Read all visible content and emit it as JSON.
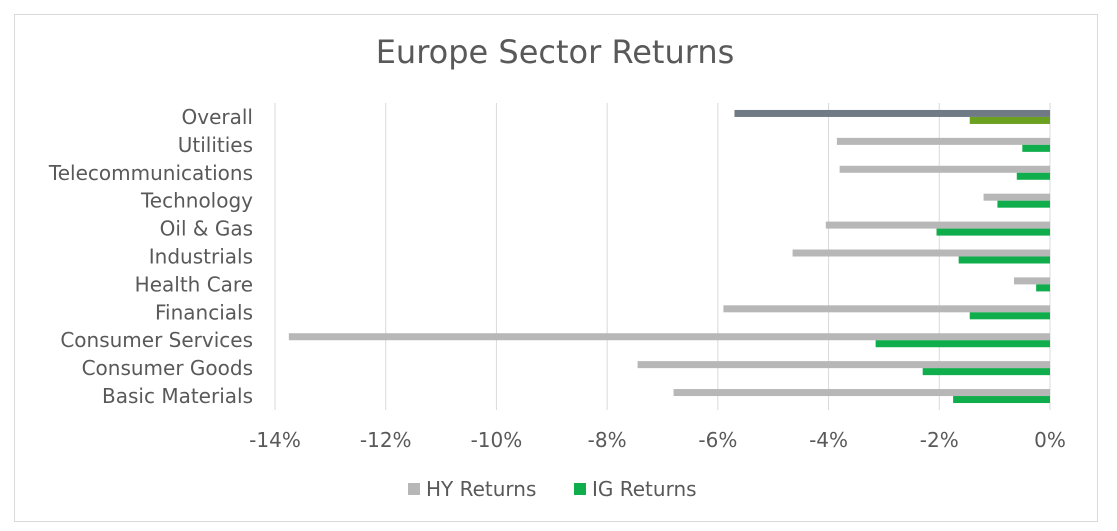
{
  "chart_data": {
    "type": "bar",
    "orientation": "horizontal",
    "title": "Europe Sector Returns",
    "categories": [
      "Overall",
      "Utilities",
      "Telecommunications",
      "Technology",
      "Oil & Gas",
      "Industrials",
      "Health Care",
      "Financials",
      "Consumer Services",
      "Consumer Goods",
      "Basic Materials"
    ],
    "series": [
      {
        "name": "HY Returns",
        "color": "#b7b7b7",
        "values": [
          -5.7,
          -3.85,
          -3.8,
          -1.2,
          -4.05,
          -4.65,
          -0.65,
          -5.9,
          -13.75,
          -7.45,
          -6.8
        ]
      },
      {
        "name": "IG Returns",
        "color": "#0fad4b",
        "values": [
          -1.45,
          -0.5,
          -0.6,
          -0.95,
          -2.05,
          -1.65,
          -0.25,
          -1.45,
          -3.15,
          -2.3,
          -1.75
        ]
      }
    ],
    "highlight": {
      "category": "Overall",
      "colors": {
        "HY Returns": "#707a86",
        "IG Returns": "#6aa121"
      }
    },
    "xlim": [
      -14,
      0
    ],
    "xticks": [
      -14,
      -12,
      -10,
      -8,
      -6,
      -4,
      -2,
      0
    ],
    "xtick_labels": [
      "-14%",
      "-12%",
      "-10%",
      "-8%",
      "-6%",
      "-4%",
      "-2%",
      "0%"
    ],
    "grid": true,
    "legend_position": "bottom"
  }
}
